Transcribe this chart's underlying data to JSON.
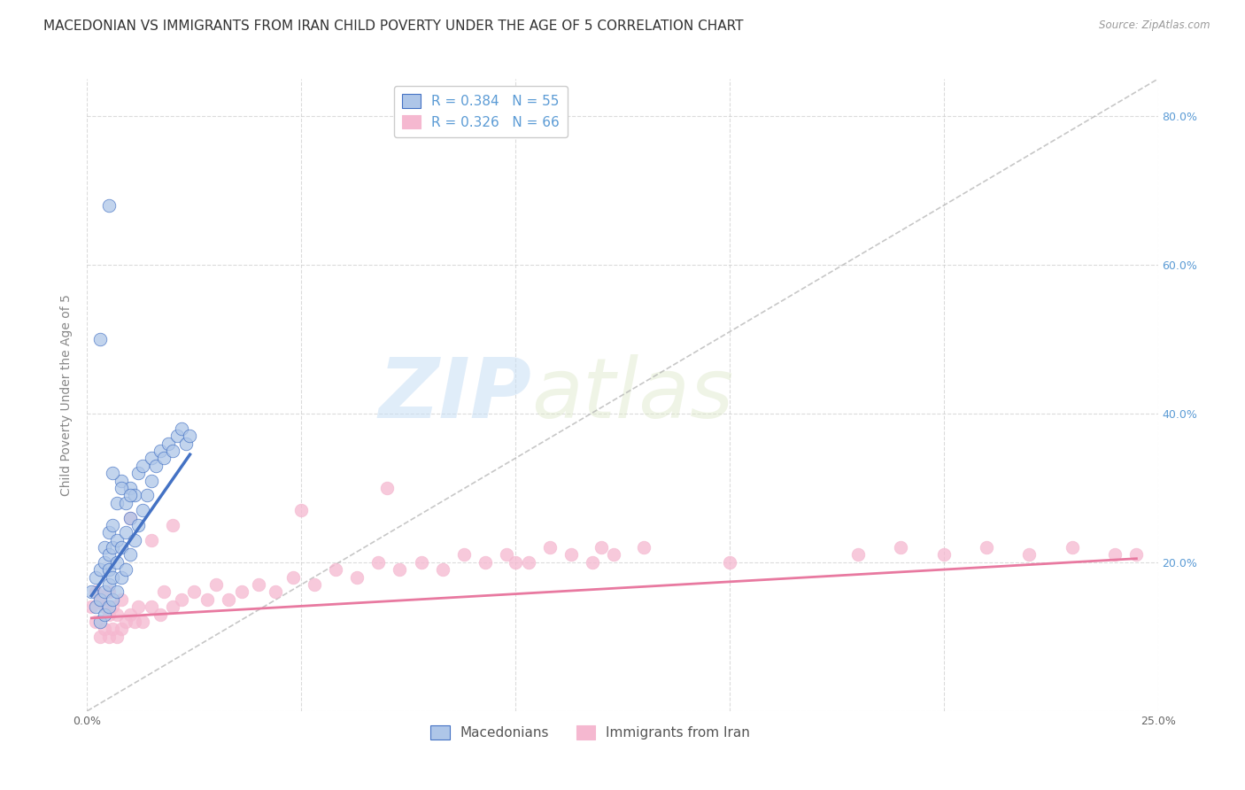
{
  "title": "MACEDONIAN VS IMMIGRANTS FROM IRAN CHILD POVERTY UNDER THE AGE OF 5 CORRELATION CHART",
  "source": "Source: ZipAtlas.com",
  "ylabel": "Child Poverty Under the Age of 5",
  "xlim": [
    0.0,
    0.25
  ],
  "ylim": [
    0.0,
    0.85
  ],
  "yticks": [
    0.0,
    0.2,
    0.4,
    0.6,
    0.8
  ],
  "xticks": [
    0.0,
    0.05,
    0.1,
    0.15,
    0.2,
    0.25
  ],
  "R_macedonian": 0.384,
  "N_macedonian": 55,
  "R_iran": 0.326,
  "N_iran": 66,
  "color_macedonian": "#aec6e8",
  "color_iran": "#f5b8d0",
  "line_color_macedonian": "#4472c4",
  "line_color_iran": "#e879a0",
  "diagonal_color": "#b0b0b0",
  "legend_label_macedonian": "Macedonians",
  "legend_label_iran": "Immigrants from Iran",
  "watermark_zip": "ZIP",
  "watermark_atlas": "atlas",
  "background_color": "#ffffff",
  "grid_color": "#cccccc",
  "title_fontsize": 11,
  "axis_label_fontsize": 10,
  "tick_fontsize": 9,
  "legend_fontsize": 11,
  "right_tick_color": "#5b9bd5",
  "mac_x": [
    0.001,
    0.002,
    0.002,
    0.003,
    0.003,
    0.003,
    0.004,
    0.004,
    0.004,
    0.004,
    0.005,
    0.005,
    0.005,
    0.005,
    0.005,
    0.006,
    0.006,
    0.006,
    0.006,
    0.007,
    0.007,
    0.007,
    0.007,
    0.008,
    0.008,
    0.008,
    0.009,
    0.009,
    0.009,
    0.01,
    0.01,
    0.01,
    0.011,
    0.011,
    0.012,
    0.012,
    0.013,
    0.013,
    0.014,
    0.015,
    0.015,
    0.016,
    0.017,
    0.018,
    0.019,
    0.02,
    0.021,
    0.022,
    0.023,
    0.024,
    0.003,
    0.006,
    0.005,
    0.008,
    0.01
  ],
  "mac_y": [
    0.16,
    0.14,
    0.18,
    0.12,
    0.15,
    0.19,
    0.13,
    0.16,
    0.2,
    0.22,
    0.14,
    0.17,
    0.19,
    0.21,
    0.24,
    0.15,
    0.18,
    0.22,
    0.25,
    0.16,
    0.2,
    0.23,
    0.28,
    0.18,
    0.22,
    0.31,
    0.19,
    0.24,
    0.28,
    0.21,
    0.26,
    0.3,
    0.23,
    0.29,
    0.25,
    0.32,
    0.27,
    0.33,
    0.29,
    0.31,
    0.34,
    0.33,
    0.35,
    0.34,
    0.36,
    0.35,
    0.37,
    0.38,
    0.36,
    0.37,
    0.5,
    0.32,
    0.68,
    0.3,
    0.29
  ],
  "iran_x": [
    0.001,
    0.002,
    0.002,
    0.003,
    0.003,
    0.004,
    0.004,
    0.005,
    0.005,
    0.005,
    0.006,
    0.006,
    0.007,
    0.007,
    0.008,
    0.008,
    0.009,
    0.01,
    0.011,
    0.012,
    0.013,
    0.015,
    0.017,
    0.018,
    0.02,
    0.022,
    0.025,
    0.028,
    0.03,
    0.033,
    0.036,
    0.04,
    0.044,
    0.048,
    0.053,
    0.058,
    0.063,
    0.068,
    0.073,
    0.078,
    0.083,
    0.088,
    0.093,
    0.098,
    0.103,
    0.108,
    0.113,
    0.118,
    0.123,
    0.13,
    0.01,
    0.015,
    0.02,
    0.07,
    0.12,
    0.18,
    0.19,
    0.2,
    0.21,
    0.22,
    0.23,
    0.24,
    0.05,
    0.1,
    0.15,
    0.245
  ],
  "iran_y": [
    0.14,
    0.12,
    0.16,
    0.1,
    0.15,
    0.11,
    0.14,
    0.1,
    0.13,
    0.16,
    0.11,
    0.14,
    0.1,
    0.13,
    0.11,
    0.15,
    0.12,
    0.13,
    0.12,
    0.14,
    0.12,
    0.14,
    0.13,
    0.16,
    0.14,
    0.15,
    0.16,
    0.15,
    0.17,
    0.15,
    0.16,
    0.17,
    0.16,
    0.18,
    0.17,
    0.19,
    0.18,
    0.2,
    0.19,
    0.2,
    0.19,
    0.21,
    0.2,
    0.21,
    0.2,
    0.22,
    0.21,
    0.2,
    0.21,
    0.22,
    0.26,
    0.23,
    0.25,
    0.3,
    0.22,
    0.21,
    0.22,
    0.21,
    0.22,
    0.21,
    0.22,
    0.21,
    0.27,
    0.2,
    0.2,
    0.21
  ],
  "mac_trendline_x": [
    0.001,
    0.024
  ],
  "mac_trendline_y": [
    0.155,
    0.345
  ],
  "iran_trendline_x": [
    0.001,
    0.245
  ],
  "iran_trendline_y": [
    0.125,
    0.205
  ]
}
